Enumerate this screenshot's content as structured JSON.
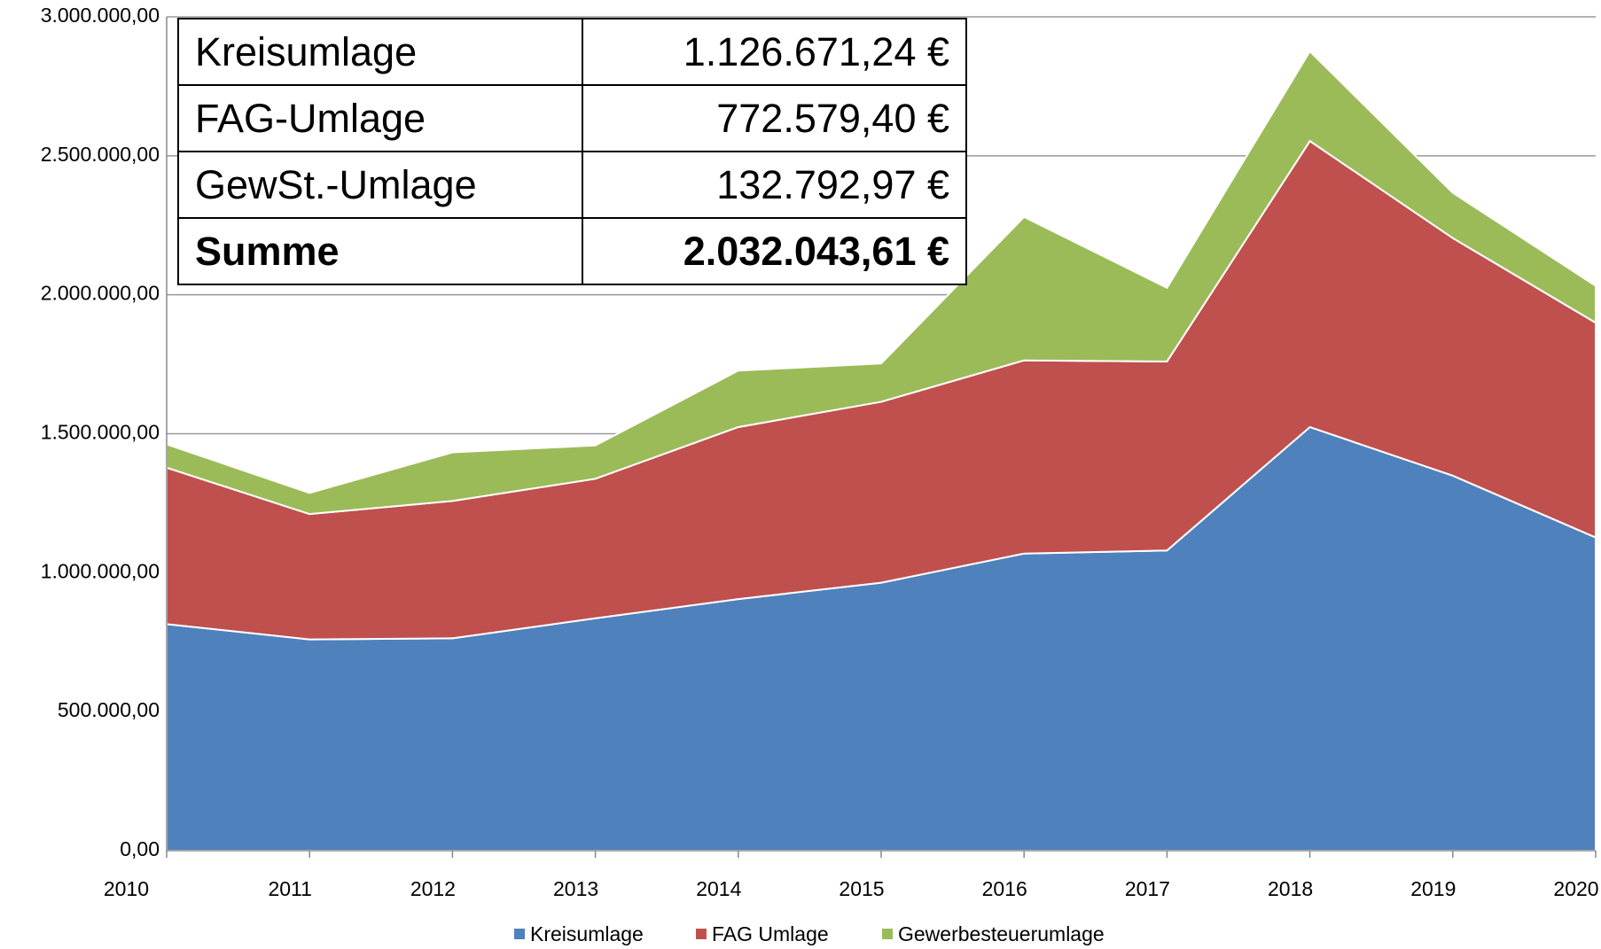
{
  "chart_data": {
    "type": "stacked_area",
    "categories": [
      "2010",
      "2011",
      "2012",
      "2013",
      "2014",
      "2015",
      "2016",
      "2017",
      "2018",
      "2019",
      "2020"
    ],
    "series": [
      {
        "name": "Kreisumlage",
        "color": "#4f81bd",
        "values": [
          815000,
          760000,
          764000,
          836000,
          905000,
          964000,
          1069000,
          1080000,
          1524000,
          1349000,
          1126671
        ]
      },
      {
        "name": "FAG Umlage",
        "color": "#c0504d",
        "values": [
          563000,
          451000,
          494000,
          502000,
          619000,
          651000,
          695000,
          680000,
          1029000,
          855000,
          772579
        ]
      },
      {
        "name": "Gewerbesteuerumlage",
        "color": "#9bbb59",
        "values": [
          84000,
          76000,
          175000,
          120000,
          203000,
          138000,
          516000,
          265000,
          323000,
          163000,
          132793
        ]
      }
    ],
    "ylim": [
      0,
      3000000
    ],
    "yticks": [
      {
        "value": 0,
        "label": "0,00"
      },
      {
        "value": 500000,
        "label": "500.000,00"
      },
      {
        "value": 1000000,
        "label": "1.000.000,00"
      },
      {
        "value": 1500000,
        "label": "1.500.000,00"
      },
      {
        "value": 2000000,
        "label": "2.000.000,00"
      },
      {
        "value": 2500000,
        "label": "2.500.000,00"
      },
      {
        "value": 3000000,
        "label": "3.000.000,00"
      }
    ],
    "grid": true,
    "legend": "bottom"
  },
  "table": {
    "rows": [
      [
        "Kreisumlage",
        "1.126.671,24 €"
      ],
      [
        "FAG-Umlage",
        "772.579,40 €"
      ],
      [
        "GewSt.-Umlage",
        "132.792,97 €"
      ],
      [
        "Summe",
        "2.032.043,61 €"
      ]
    ]
  }
}
